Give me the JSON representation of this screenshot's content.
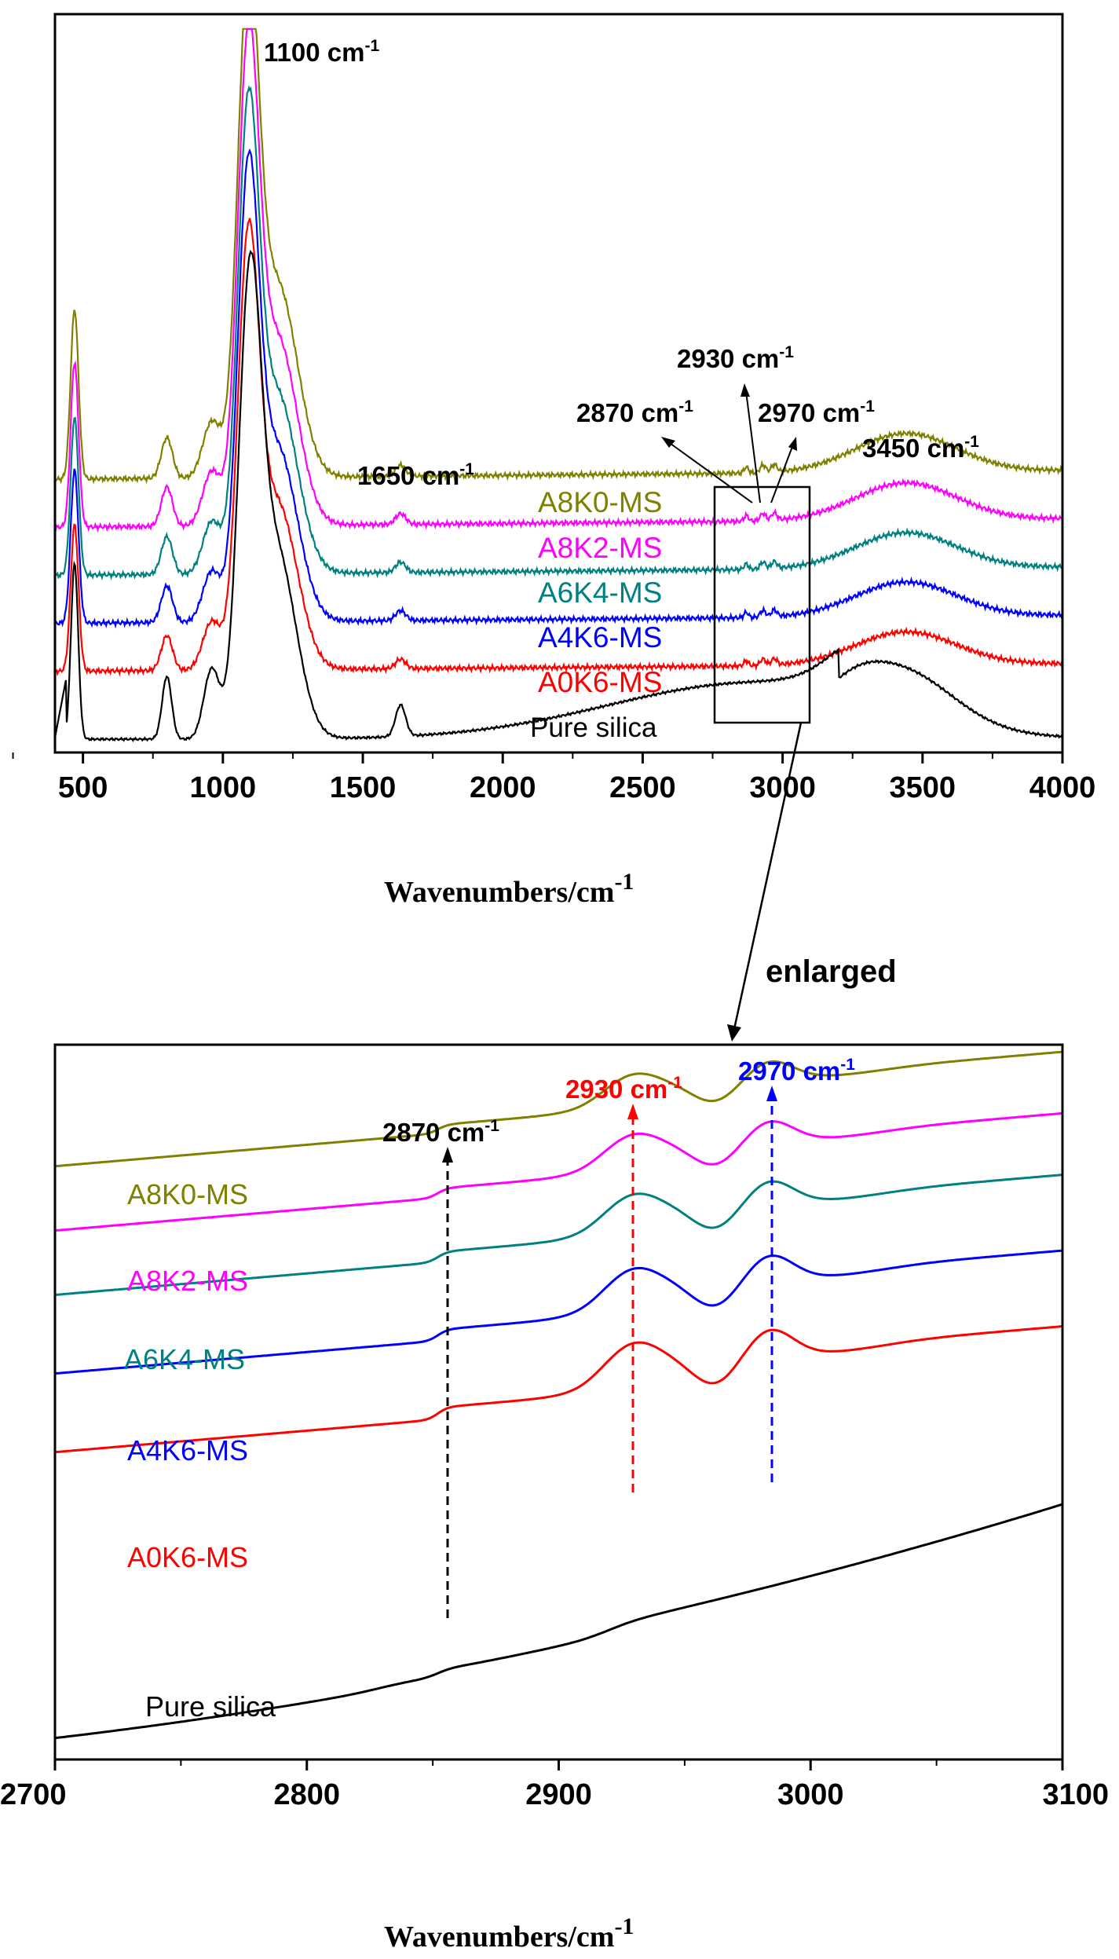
{
  "colors": {
    "A8K0-MS": "#808000",
    "A8K2-MS": "#ff00ff",
    "A6K4-MS": "#008080",
    "A4K6-MS": "#0000ff",
    "A0K6-MS": "#ff0000",
    "Pure silica": "#000000"
  },
  "chart_data": [
    {
      "type": "line",
      "title": "",
      "xlabel": "Wavenumbers/cm",
      "xlabel_sup": "-1",
      "ylabel": "",
      "xlim": [
        400,
        4000
      ],
      "ylim": [
        0,
        10
      ],
      "xticks": [
        500,
        1000,
        1500,
        2000,
        2500,
        3000,
        3500,
        4000
      ],
      "tick_labels": [
        "500",
        "1000",
        "1500",
        "2000",
        "2500",
        "3000",
        "3500",
        "4000"
      ],
      "series": [
        {
          "name": "A8K0-MS",
          "label": "A8K0-MS",
          "offset": 3.7,
          "amp": 1.0
        },
        {
          "name": "A8K2-MS",
          "label": "A8K2-MS",
          "offset": 3.05,
          "amp": 0.97
        },
        {
          "name": "A6K4-MS",
          "label": "A6K4-MS",
          "offset": 2.4,
          "amp": 0.93
        },
        {
          "name": "A4K6-MS",
          "label": "A4K6-MS",
          "offset": 1.75,
          "amp": 0.9
        },
        {
          "name": "A0K6-MS",
          "label": "A0K6-MS",
          "offset": 1.1,
          "amp": 0.86
        },
        {
          "name": "Pure silica",
          "label": "Pure silica",
          "offset": 0.0,
          "amp": 0.85
        }
      ],
      "annotations": [
        {
          "text": "1100 cm",
          "sup": "-1",
          "x": 1100
        },
        {
          "text": "1650 cm",
          "sup": "-1",
          "x": 1650
        },
        {
          "text": "2870 cm",
          "sup": "-1",
          "x": 2870
        },
        {
          "text": "2930 cm",
          "sup": "-1",
          "x": 2930
        },
        {
          "text": "2970 cm",
          "sup": "-1",
          "x": 2970
        },
        {
          "text": "3450 cm",
          "sup": "-1",
          "x": 3450
        }
      ],
      "inset_box": {
        "x_range": [
          2750,
          3080
        ]
      },
      "enlarged_label": "enlarged"
    },
    {
      "type": "line",
      "title": "",
      "xlabel": "Wavenumbers/cm",
      "xlabel_sup": "-1",
      "ylabel": "",
      "xlim": [
        2700,
        3100
      ],
      "ylim": [
        0,
        10
      ],
      "xticks": [
        2700,
        2800,
        2900,
        3000,
        3100
      ],
      "tick_labels": [
        "2700",
        "2800",
        "2900",
        "3000",
        "3100"
      ],
      "series": [
        {
          "name": "A8K0-MS",
          "label": "A8K0-MS",
          "start": 8.3,
          "end": 9.8
        },
        {
          "name": "A8K2-MS",
          "label": "A8K2-MS",
          "start": 7.4,
          "end": 8.9
        },
        {
          "name": "A6K4-MS",
          "label": "A6K4-MS",
          "start": 6.5,
          "end": 8.0
        },
        {
          "name": "A4K6-MS",
          "label": "A4K6-MS",
          "start": 5.4,
          "end": 6.9
        },
        {
          "name": "A0K6-MS",
          "label": "A0K6-MS",
          "start": 4.3,
          "end": 5.8
        },
        {
          "name": "Pure silica",
          "label": "Pure silica",
          "start": 0.3,
          "end": 3.3
        }
      ],
      "annotations": [
        {
          "text": "2870 cm",
          "sup": "-1",
          "x": 2855,
          "color": "#000000"
        },
        {
          "text": "2930 cm",
          "sup": "-1",
          "x": 2928,
          "color": "#ff0000"
        },
        {
          "text": "2970 cm",
          "sup": "-1",
          "x": 2984,
          "color": "#0000ff"
        }
      ]
    }
  ]
}
